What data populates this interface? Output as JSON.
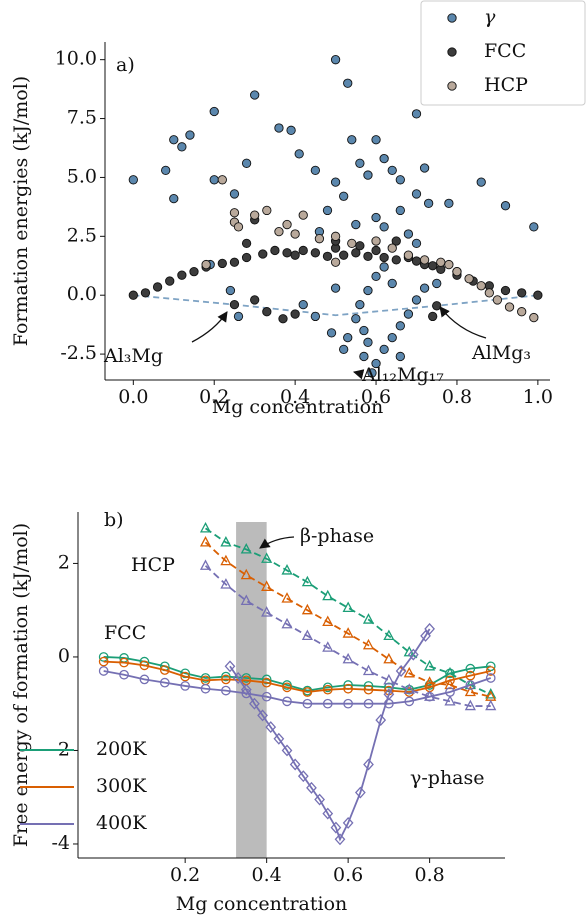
{
  "chart_data": [
    {
      "type": "scatter",
      "ylabel": "Formation energies (kJ/mol)",
      "xlabel": "Mg concentration",
      "xlim": [
        -0.07,
        1.03
      ],
      "ylim": [
        -3.6,
        10.75
      ],
      "xticks": [
        {
          "value": 0,
          "label": "0.0"
        },
        0.2,
        0.4,
        0.6,
        0.8,
        {
          "value": 1,
          "label": "1.0"
        }
      ],
      "yticks": [
        -2.5,
        {
          "value": 0,
          "label": "0.0"
        },
        2.5,
        {
          "value": 5,
          "label": "5.0"
        },
        7.5,
        {
          "value": 10,
          "label": "10.0"
        }
      ],
      "legend": "upper right",
      "annotations": [
        "a)",
        "Al₃Mg",
        "Al₁₂Mg₁₇",
        "AlMg₃"
      ],
      "hull": {
        "color": "#7ea3c4",
        "x": [
          0,
          0.25,
          0.5,
          0.75,
          1
        ],
        "y": [
          0,
          -0.4,
          -0.85,
          -0.45,
          0
        ]
      },
      "series": [
        {
          "name": "γ",
          "color": "#5b87ad",
          "x": [
            0.0,
            0.08,
            0.1,
            0.1,
            0.12,
            0.14,
            0.2,
            0.2,
            0.25,
            0.3,
            0.28,
            0.36,
            0.39,
            0.41,
            0.45,
            0.5,
            0.53,
            0.5,
            0.52,
            0.54,
            0.56,
            0.58,
            0.6,
            0.62,
            0.64,
            0.66,
            0.7,
            0.7,
            0.72,
            0.73,
            0.78,
            0.86,
            0.92,
            0.99,
            0.46,
            0.48,
            0.55,
            0.6,
            0.62,
            0.66,
            0.68,
            0.7,
            0.62,
            0.6,
            0.58,
            0.56,
            0.55,
            0.57,
            0.58,
            0.57,
            0.59,
            0.6,
            0.62,
            0.64,
            0.66,
            0.68,
            0.7,
            0.72,
            0.66,
            0.24,
            0.26,
            0.42,
            0.45,
            0.49,
            0.52,
            0.53,
            0.5,
            0.19,
            0.64,
            0.75,
            0.8
          ],
          "y": [
            4.9,
            5.3,
            4.1,
            6.6,
            6.3,
            6.8,
            7.8,
            4.9,
            4.3,
            8.5,
            5.6,
            7.1,
            7.0,
            6.0,
            5.3,
            10.0,
            9.0,
            4.8,
            4.2,
            6.6,
            5.6,
            5.1,
            6.6,
            5.8,
            5.3,
            4.9,
            7.7,
            4.3,
            5.4,
            3.9,
            3.9,
            4.8,
            3.8,
            2.9,
            2.7,
            3.6,
            3.0,
            3.3,
            2.9,
            3.6,
            2.6,
            2.2,
            1.2,
            0.8,
            0.2,
            -0.4,
            -1.0,
            -1.5,
            -2.0,
            -2.6,
            -3.3,
            -2.9,
            -2.3,
            -1.8,
            -1.3,
            -0.8,
            -0.2,
            0.3,
            -2.6,
            0.2,
            -0.9,
            -0.4,
            -0.9,
            -1.6,
            -2.3,
            -1.8,
            0.3,
            1.3,
            0.5,
            0.5,
            1.0
          ]
        },
        {
          "name": "FCC",
          "color": "#3c3c3c",
          "x": [
            0,
            0.03,
            0.06,
            0.09,
            0.12,
            0.15,
            0.18,
            0.22,
            0.25,
            0.28,
            0.32,
            0.35,
            0.38,
            0.4,
            0.42,
            0.45,
            0.48,
            0.5,
            0.52,
            0.55,
            0.58,
            0.6,
            0.62,
            0.65,
            0.68,
            0.7,
            0.72,
            0.74,
            0.76,
            0.8,
            0.84,
            0.88,
            0.92,
            0.96,
            1.0,
            0.25,
            0.3,
            0.33,
            0.37,
            0.4,
            0.28,
            0.3,
            0.5,
            0.56,
            0.65,
            0.75,
            0.74
          ],
          "y": [
            0,
            0.1,
            0.35,
            0.6,
            0.85,
            1.0,
            1.2,
            1.35,
            1.4,
            1.6,
            1.75,
            1.9,
            1.8,
            1.7,
            1.9,
            1.8,
            1.65,
            2.0,
            1.7,
            1.8,
            1.65,
            1.9,
            1.6,
            1.5,
            1.6,
            1.45,
            1.3,
            1.25,
            1.1,
            0.85,
            0.6,
            0.4,
            0.2,
            0.1,
            0.0,
            -0.4,
            -0.2,
            -0.7,
            -1.0,
            -0.8,
            2.2,
            3.2,
            2.3,
            2.1,
            2.3,
            -0.45,
            -0.9
          ]
        },
        {
          "name": "HCP",
          "color": "#b9a99b",
          "x": [
            0.25,
            0.25,
            0.26,
            0.3,
            0.33,
            0.36,
            0.38,
            0.4,
            0.42,
            0.46,
            0.5,
            0.54,
            0.6,
            0.64,
            0.68,
            0.72,
            0.76,
            0.78,
            0.8,
            0.83,
            0.86,
            0.88,
            0.9,
            0.93,
            0.96,
            0.99,
            0.18,
            0.22,
            0.5
          ],
          "y": [
            3.5,
            3.1,
            2.9,
            3.4,
            3.6,
            2.7,
            3.0,
            2.6,
            3.4,
            2.4,
            2.5,
            2.2,
            2.3,
            2.0,
            1.7,
            1.5,
            1.4,
            1.3,
            1.0,
            0.7,
            0.4,
            0.1,
            -0.2,
            -0.5,
            -0.7,
            -0.95,
            1.3,
            4.9,
            1.4
          ]
        }
      ]
    },
    {
      "type": "line",
      "ylabel": "Free energy of formation (kJ/mol)",
      "xlabel": "Mg concentration",
      "xlim": [
        -0.063,
        0.985
      ],
      "ylim": [
        -4.3,
        3.1
      ],
      "xticks": [
        0.2,
        0.4,
        0.6,
        0.8
      ],
      "yticks": [
        -4,
        -2,
        0,
        2
      ],
      "legend": "lower left",
      "band": {
        "color": "#bbbbbb",
        "x": [
          0.325,
          0.4
        ]
      },
      "annotations": [
        "b)",
        "HCP",
        "FCC",
        "β-phase",
        "γ-phase"
      ],
      "x_fcc": [
        0,
        0.05,
        0.1,
        0.15,
        0.2,
        0.25,
        0.3,
        0.35,
        0.4,
        0.45,
        0.5,
        0.55,
        0.6,
        0.65,
        0.7,
        0.75,
        0.8,
        0.85,
        0.9,
        0.95
      ],
      "x_hcp": [
        0.25,
        0.3,
        0.35,
        0.4,
        0.45,
        0.5,
        0.55,
        0.6,
        0.65,
        0.7,
        0.75,
        0.8,
        0.85,
        0.9,
        0.95
      ],
      "x_gamma": [
        0.31,
        0.33,
        0.35,
        0.37,
        0.39,
        0.41,
        0.43,
        0.45,
        0.47,
        0.49,
        0.51,
        0.53,
        0.55,
        0.57,
        0.58,
        0.6,
        0.63,
        0.65,
        0.68,
        0.7,
        0.73,
        0.76,
        0.79,
        0.8
      ],
      "series": [
        {
          "name": "200K",
          "color": "#1b9e77",
          "fcc": [
            0.0,
            -0.02,
            -0.1,
            -0.2,
            -0.35,
            -0.45,
            -0.42,
            -0.45,
            -0.48,
            -0.6,
            -0.72,
            -0.65,
            -0.6,
            -0.62,
            -0.65,
            -0.7,
            -0.6,
            -0.35,
            -0.25,
            -0.2
          ],
          "hcp": [
            2.75,
            2.45,
            2.3,
            2.1,
            1.85,
            1.6,
            1.3,
            1.05,
            0.8,
            0.45,
            0.1,
            -0.2,
            -0.35,
            -0.6,
            -0.8
          ]
        },
        {
          "name": "300K",
          "color": "#d95f02",
          "fcc": [
            -0.1,
            -0.12,
            -0.18,
            -0.28,
            -0.42,
            -0.5,
            -0.48,
            -0.5,
            -0.55,
            -0.65,
            -0.75,
            -0.7,
            -0.68,
            -0.7,
            -0.72,
            -0.75,
            -0.65,
            -0.5,
            -0.4,
            -0.3
          ],
          "hcp": [
            2.45,
            2.05,
            1.75,
            1.5,
            1.25,
            1.0,
            0.75,
            0.5,
            0.25,
            -0.05,
            -0.35,
            -0.55,
            -0.6,
            -0.75,
            -0.85
          ]
        },
        {
          "name": "400K",
          "color": "#7570b3",
          "fcc": [
            -0.3,
            -0.38,
            -0.48,
            -0.55,
            -0.62,
            -0.68,
            -0.72,
            -0.78,
            -0.85,
            -0.95,
            -1.0,
            -1.0,
            -1.0,
            -1.0,
            -1.0,
            -0.95,
            -0.85,
            -0.75,
            -0.6,
            -0.45
          ],
          "hcp": [
            1.95,
            1.55,
            1.2,
            0.95,
            0.7,
            0.45,
            0.2,
            -0.05,
            -0.3,
            -0.5,
            -0.7,
            -0.85,
            -0.95,
            -1.05,
            -1.05
          ],
          "gamma": [
            -0.2,
            -0.45,
            -0.7,
            -1.0,
            -1.25,
            -1.5,
            -1.75,
            -2.0,
            -2.3,
            -2.55,
            -2.8,
            -3.05,
            -3.35,
            -3.65,
            -3.9,
            -3.55,
            -2.9,
            -2.3,
            -1.35,
            -0.8,
            -0.3,
            0.05,
            0.45,
            0.6
          ]
        }
      ]
    }
  ]
}
